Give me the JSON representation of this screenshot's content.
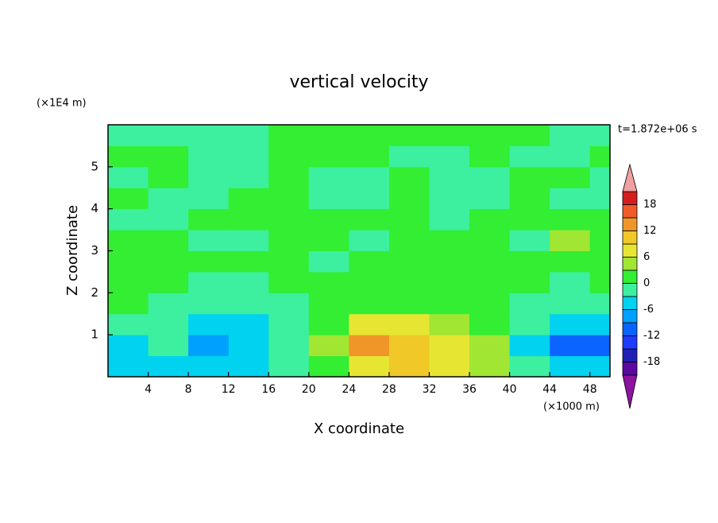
{
  "chart_data": {
    "type": "contour",
    "title": "vertical velocity",
    "xlabel": "X coordinate",
    "ylabel": "Z coordinate",
    "x_unit": "(×1000 m)",
    "y_unit": "(×1E4 m)",
    "time_label": "t=1.872e+06 s",
    "xlim": [
      0,
      50
    ],
    "ylim": [
      0,
      6
    ],
    "xticks": [
      4,
      8,
      12,
      16,
      20,
      24,
      28,
      32,
      36,
      40,
      44,
      48
    ],
    "yticks": [
      1,
      2,
      3,
      4,
      5
    ],
    "x": [
      2,
      6,
      10,
      14,
      18,
      22,
      26,
      30,
      34,
      38,
      42,
      46,
      50
    ],
    "y": [
      0.25,
      0.75,
      1.25,
      1.75,
      2.25,
      2.75,
      3.25,
      3.75,
      4.25,
      4.75,
      5.25,
      5.75
    ],
    "z": [
      [
        -4,
        -4,
        -6,
        -5,
        -3,
        2,
        8,
        9,
        7,
        3,
        -3,
        -6,
        -6
      ],
      [
        -5,
        -2,
        -8,
        -5,
        -3,
        4,
        14,
        11,
        8,
        4,
        -4,
        -10,
        -12
      ],
      [
        -1,
        -2,
        -5,
        -4,
        -2,
        2,
        7,
        6,
        5,
        2,
        -3,
        -6,
        -6
      ],
      [
        2,
        -1,
        -3,
        -3,
        -2,
        0,
        2,
        2,
        2,
        1,
        -2,
        -3,
        -2
      ],
      [
        1,
        1,
        -1,
        -1,
        1,
        1,
        1,
        1,
        1,
        1,
        1,
        -1,
        1
      ],
      [
        1,
        1,
        1,
        1,
        1,
        -1,
        1,
        1,
        1,
        1,
        1,
        1,
        1
      ],
      [
        1,
        1,
        -1,
        -1,
        1,
        1,
        -1,
        1,
        1,
        1,
        -1,
        4,
        1
      ],
      [
        -1,
        -1,
        1,
        1,
        1,
        1,
        1,
        1,
        -1,
        1,
        1,
        1,
        1
      ],
      [
        1,
        -1,
        -1,
        1,
        1,
        -1,
        -1,
        1,
        -1,
        -1,
        1,
        -1,
        -1
      ],
      [
        -1,
        1,
        -1,
        -1,
        1,
        -1,
        -1,
        1,
        -1,
        -1,
        1,
        1,
        -1
      ],
      [
        1,
        1,
        -1,
        -1,
        1,
        1,
        1,
        -1,
        -1,
        1,
        -1,
        -1,
        1
      ],
      [
        -1,
        -1,
        -1,
        -1,
        1,
        1,
        1,
        1,
        1,
        1,
        1,
        -1,
        -1
      ]
    ],
    "levels": [
      -21,
      -18,
      -15,
      -12,
      -9,
      -6,
      -3,
      0,
      3,
      6,
      9,
      12,
      15,
      18,
      21
    ],
    "colors": [
      "#8c14a0",
      "#5a0aa0",
      "#2020b4",
      "#1e3cff",
      "#0a64ff",
      "#00a0ff",
      "#00d2f0",
      "#3cf0a0",
      "#33ee33",
      "#a0e632",
      "#e6e632",
      "#f0c828",
      "#f09628",
      "#f05a28",
      "#d21e1e",
      "#f0a0a0"
    ],
    "colorbar_ticks": [
      18,
      12,
      6,
      0,
      -6,
      -12,
      -18
    ]
  }
}
